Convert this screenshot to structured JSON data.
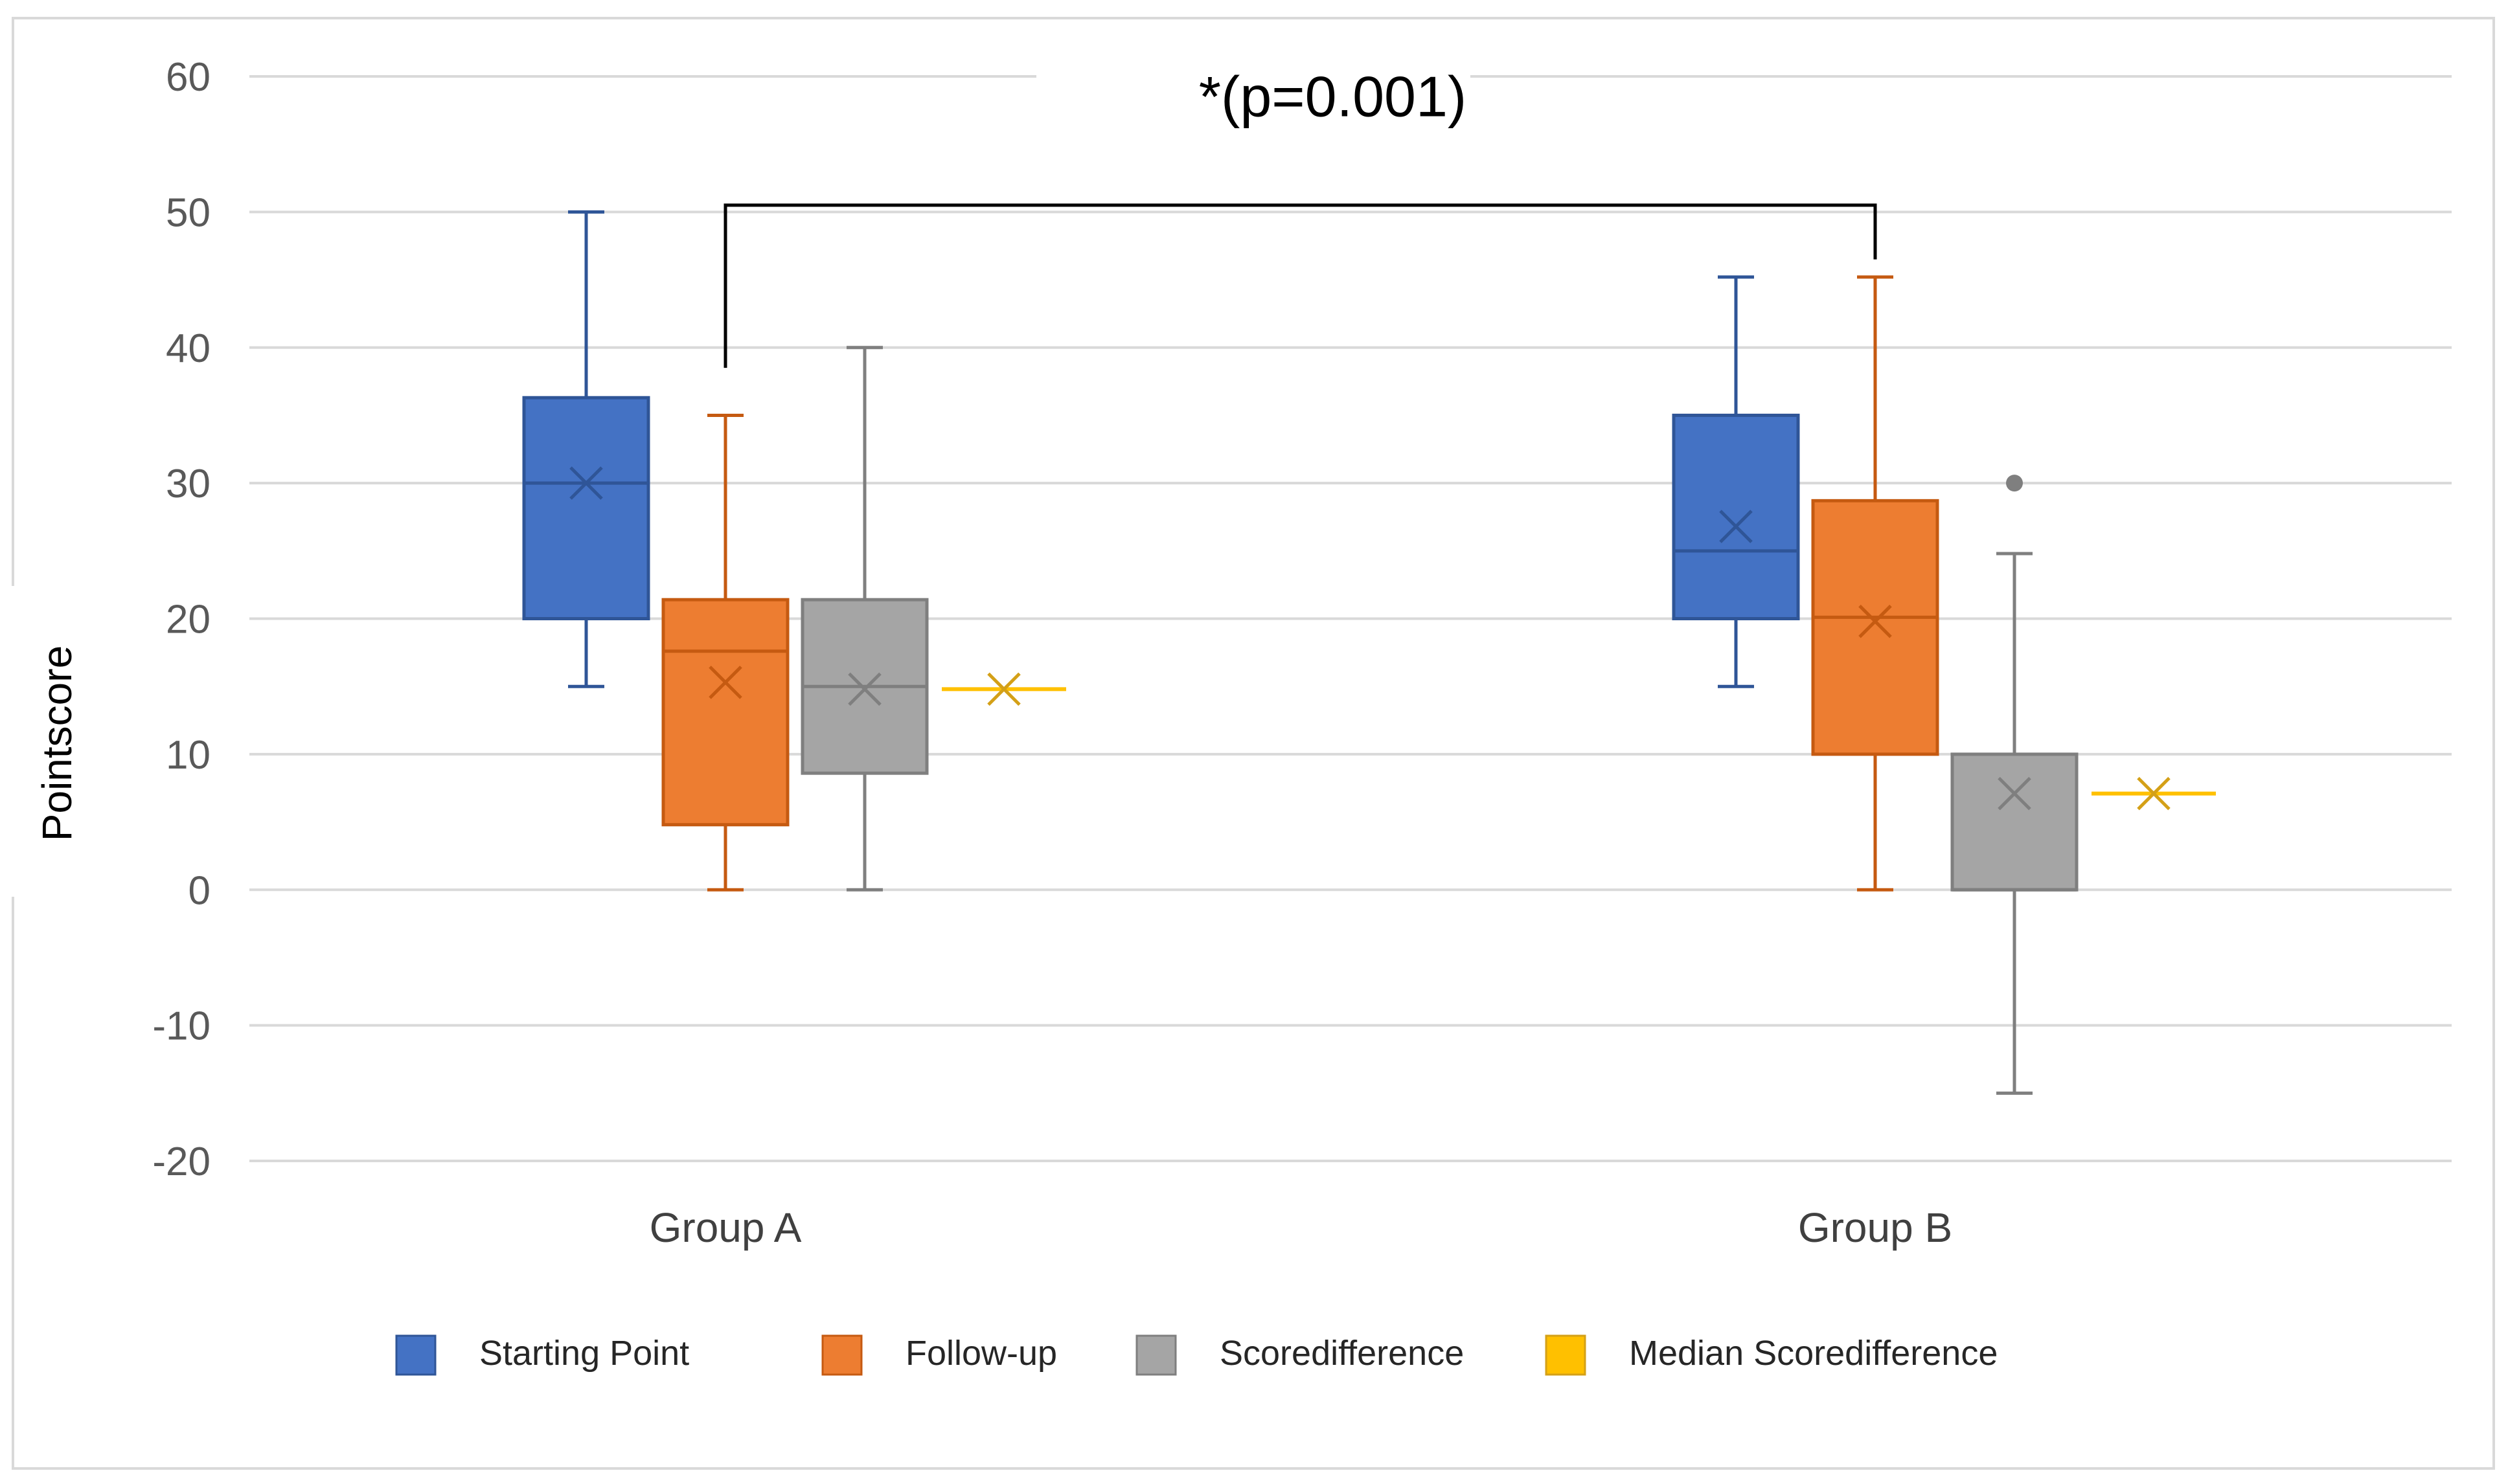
{
  "chart_data": {
    "type": "box",
    "ylabel": "Pointscore",
    "ylim": [
      -20,
      60
    ],
    "yticks": [
      60,
      50,
      40,
      30,
      20,
      10,
      0,
      -10,
      -20
    ],
    "yticks_labels": [
      "60",
      "50",
      "40",
      "30",
      "20",
      "10",
      "0",
      "-10",
      "-20"
    ],
    "grid": true,
    "categories": [
      "Group A",
      "Group B"
    ],
    "legend_position": "bottom",
    "annotation": {
      "text": "*(p=0.001)",
      "between": [
        "Group A",
        "Group B"
      ]
    },
    "series": [
      {
        "name": "Starting Point",
        "color": "#4472C4",
        "stroke": "#2F5597",
        "boxes": [
          {
            "min": 15,
            "q1": 20,
            "median": 30,
            "q3": 36.3,
            "max": 50,
            "mean": 30,
            "outliers": []
          },
          {
            "min": 15,
            "q1": 20,
            "median": 25,
            "q3": 35,
            "max": 45.2,
            "mean": 26.8,
            "outliers": []
          }
        ]
      },
      {
        "name": "Follow-up",
        "color": "#ED7D31",
        "stroke": "#C55A11",
        "boxes": [
          {
            "min": 0,
            "q1": 4.8,
            "median": 17.6,
            "q3": 21.4,
            "max": 35,
            "mean": 15.3,
            "outliers": []
          },
          {
            "min": 0,
            "q1": 10,
            "median": 20.1,
            "q3": 28.7,
            "max": 45.2,
            "mean": 19.8,
            "outliers": []
          }
        ]
      },
      {
        "name": "Scoredifference",
        "color": "#A5A5A5",
        "stroke": "#7F7F7F",
        "boxes": [
          {
            "min": 0,
            "q1": 8.6,
            "median": 15,
            "q3": 21.4,
            "max": 40,
            "mean": 14.8,
            "outliers": []
          },
          {
            "min": -15,
            "q1": 0,
            "median": 0,
            "q3": 10,
            "max": 24.8,
            "mean": 7.1,
            "outliers": [
              30
            ]
          }
        ]
      },
      {
        "name": "Median Scoredifference",
        "color": "#FFC000",
        "stroke": "#D4A017",
        "boxes": [
          {
            "min": 14.8,
            "q1": 14.8,
            "median": 14.8,
            "q3": 14.8,
            "max": 14.8,
            "mean": 14.8,
            "outliers": []
          },
          {
            "min": 7.1,
            "q1": 7.1,
            "median": 7.1,
            "q3": 7.1,
            "max": 7.1,
            "mean": 7.1,
            "outliers": []
          }
        ]
      }
    ]
  }
}
